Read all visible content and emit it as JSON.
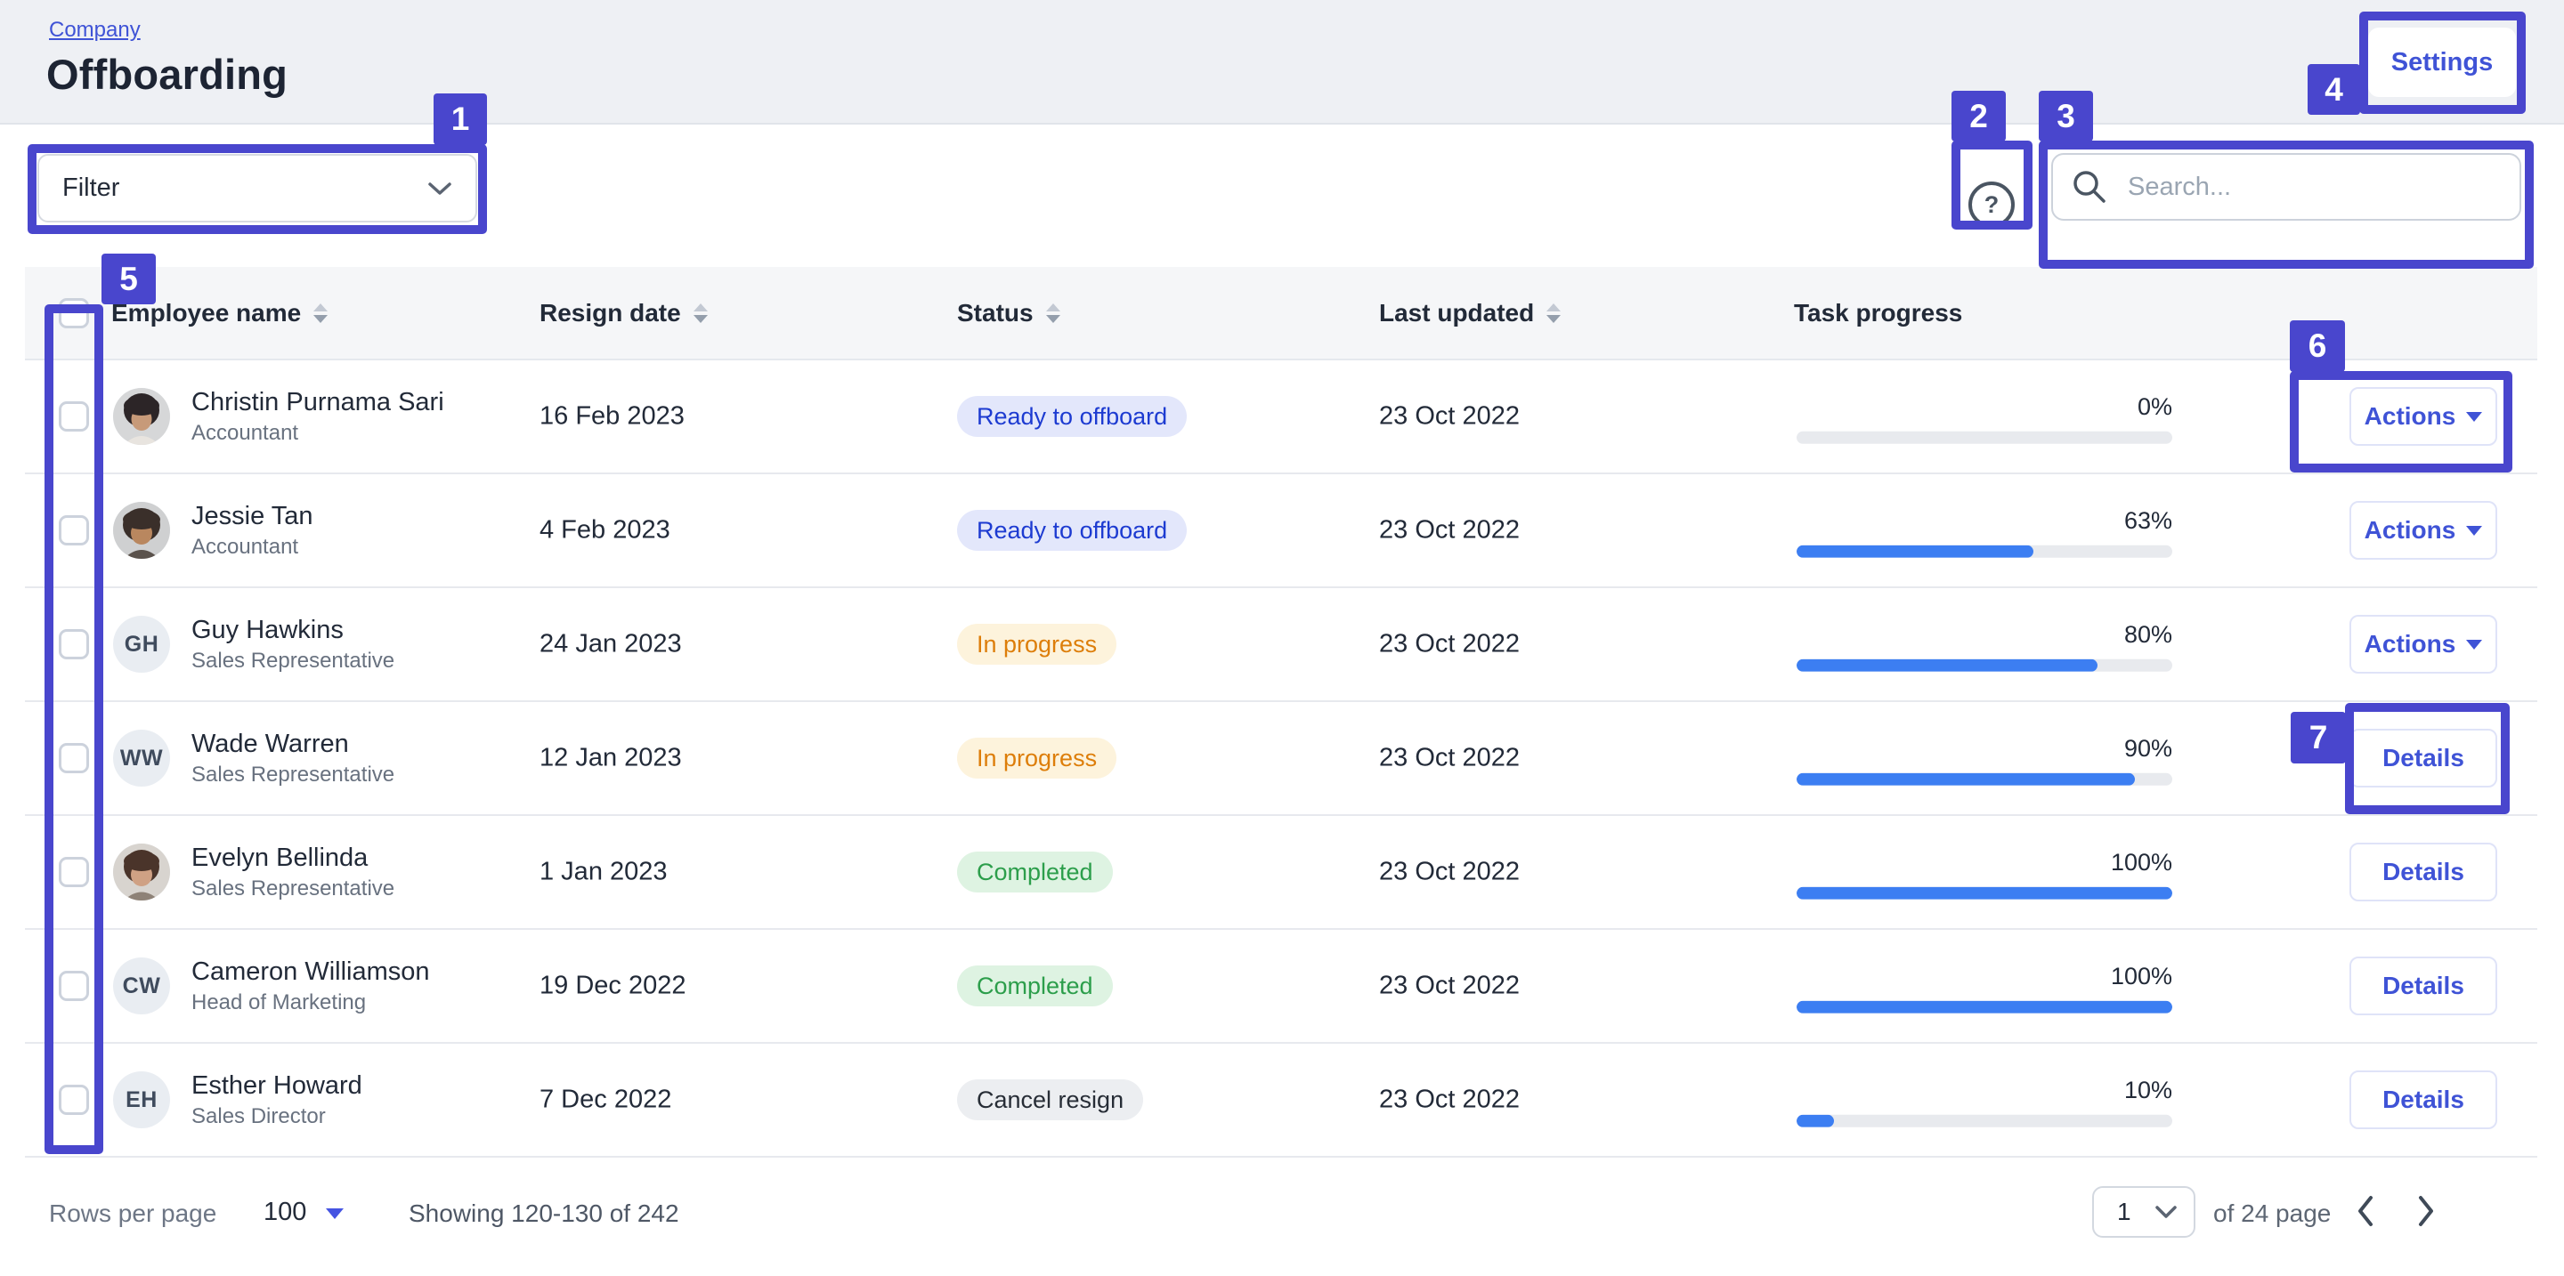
{
  "colors": {
    "accent": "#4946cd",
    "link_blue": "#3f53d6",
    "progress_blue": "#3c7ef2"
  },
  "header": {
    "breadcrumb": "Company",
    "title": "Offboarding",
    "settings_label": "Settings"
  },
  "toolbar": {
    "filter_label": "Filter",
    "help_icon": "?",
    "search_placeholder": "Search..."
  },
  "annotations": [
    "1",
    "2",
    "3",
    "4",
    "5",
    "6",
    "7"
  ],
  "table": {
    "columns": [
      {
        "label": "Employee name",
        "sortable": true
      },
      {
        "label": "Resign date",
        "sortable": true
      },
      {
        "label": "Status",
        "sortable": true
      },
      {
        "label": "Last updated",
        "sortable": true
      },
      {
        "label": "Task progress",
        "sortable": false
      }
    ],
    "rows": [
      {
        "name": "Christin Purnama Sari",
        "role": "Accountant",
        "avatar_variant": "photo",
        "avatar_initials": "",
        "resign_date": "16 Feb 2023",
        "status": "Ready to offboard",
        "status_variant": "ready",
        "last_updated": "23 Oct 2022",
        "progress_pct": 0,
        "progress_label": "0%",
        "action": "Actions",
        "action_variant": "actions"
      },
      {
        "name": "Jessie Tan",
        "role": "Accountant",
        "avatar_variant": "photo",
        "avatar_initials": "",
        "resign_date": "4 Feb 2023",
        "status": "Ready to offboard",
        "status_variant": "ready",
        "last_updated": "23 Oct 2022",
        "progress_pct": 63,
        "progress_label": "63%",
        "action": "Actions",
        "action_variant": "actions"
      },
      {
        "name": "Guy Hawkins",
        "role": "Sales Representative",
        "avatar_variant": "initials",
        "avatar_initials": "GH",
        "resign_date": "24 Jan 2023",
        "status": "In progress",
        "status_variant": "progress",
        "last_updated": "23 Oct 2022",
        "progress_pct": 80,
        "progress_label": "80%",
        "action": "Actions",
        "action_variant": "actions"
      },
      {
        "name": "Wade Warren",
        "role": "Sales Representative",
        "avatar_variant": "initials",
        "avatar_initials": "WW",
        "resign_date": "12 Jan 2023",
        "status": "In progress",
        "status_variant": "progress",
        "last_updated": "23 Oct 2022",
        "progress_pct": 90,
        "progress_label": "90%",
        "action": "Details",
        "action_variant": "details"
      },
      {
        "name": "Evelyn Bellinda",
        "role": "Sales Representative",
        "avatar_variant": "photo",
        "avatar_initials": "",
        "resign_date": "1 Jan 2023",
        "status": "Completed",
        "status_variant": "completed",
        "last_updated": "23 Oct 2022",
        "progress_pct": 100,
        "progress_label": "100%",
        "action": "Details",
        "action_variant": "details"
      },
      {
        "name": "Cameron Williamson",
        "role": "Head of Marketing",
        "avatar_variant": "initials",
        "avatar_initials": "CW",
        "resign_date": "19 Dec 2022",
        "status": "Completed",
        "status_variant": "completed",
        "last_updated": "23 Oct 2022",
        "progress_pct": 100,
        "progress_label": "100%",
        "action": "Details",
        "action_variant": "details"
      },
      {
        "name": "Esther Howard",
        "role": "Sales Director",
        "avatar_variant": "initials",
        "avatar_initials": "EH",
        "resign_date": "7 Dec 2022",
        "status": "Cancel resign",
        "status_variant": "cancel",
        "last_updated": "23 Oct 2022",
        "progress_pct": 10,
        "progress_label": "10%",
        "action": "Details",
        "action_variant": "details"
      }
    ]
  },
  "footer": {
    "rows_per_page_label": "Rows per page",
    "rows_per_page_value": "100",
    "showing_text": "Showing 120-130 of 242",
    "page_value": "1",
    "page_total_label": "of 24 page"
  }
}
